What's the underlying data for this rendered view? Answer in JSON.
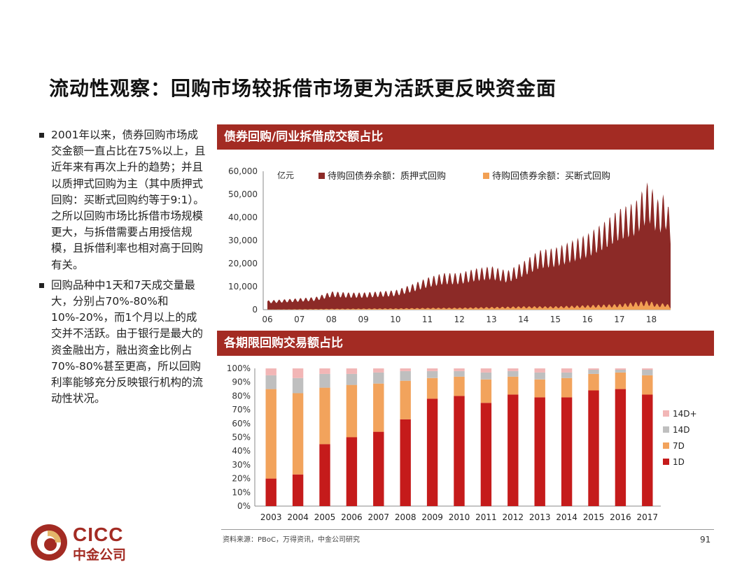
{
  "page": {
    "title": "流动性观察：回购市场较拆借市场更为活跃更反映资金面",
    "page_number": "91",
    "source": "资料来源：PBoC，万得资讯，中金公司研究"
  },
  "logo": {
    "en": "CICC",
    "cn": "中金公司"
  },
  "bullets": [
    "2001年以来，债券回购市场成交金额一直占比在75%以上，且近年来有再次上升的趋势；并且以质押式回购为主（其中质押式回购：买断式回购约等于9:1）。之所以回购市场比拆借市场规模更大，与拆借需要占用授信规模，且拆借利率也相对高于回购有关。",
    "回购品种中1天和7天成交量最大，分别占70%-80%和10%-20%，而1个月以上的成交并不活跃。由于银行是最大的资金融出方，融出资金比例占70%-80%甚至更高，所以回购利率能够充分反映银行机构的流动性状况。"
  ],
  "colors": {
    "band": "#a32b23",
    "pledged": "#8c2a27",
    "outright": "#f2a054",
    "d1": "#c51b1b",
    "d7": "#f2a35c",
    "d14": "#bfbfbf",
    "d14p": "#f2b6b6"
  },
  "chart_data": [
    {
      "type": "area",
      "title": "债券回购/同业拆借成交额占比",
      "unit_label": "亿元",
      "ylim": [
        0,
        60000
      ],
      "yticks": [
        "60,000",
        "50,000",
        "40,000",
        "30,000",
        "20,000",
        "10,000",
        "0"
      ],
      "xticks": [
        "06",
        "07",
        "08",
        "09",
        "10",
        "11",
        "12",
        "13",
        "14",
        "15",
        "16",
        "17",
        "18"
      ],
      "series": [
        {
          "name": "待购回债券余额：质押式回购",
          "x": [
            2006.0,
            2006.5,
            2007.0,
            2007.5,
            2008.0,
            2008.5,
            2009.0,
            2009.5,
            2010.0,
            2010.5,
            2011.0,
            2011.5,
            2012.0,
            2012.5,
            2013.0,
            2013.5,
            2014.0,
            2014.5,
            2015.0,
            2015.5,
            2016.0,
            2016.5,
            2017.0,
            2017.5,
            2017.9,
            2018.2,
            2018.45,
            2018.6
          ],
          "values": [
            4000,
            4500,
            5000,
            5500,
            8000,
            7500,
            7500,
            8000,
            8500,
            11000,
            14000,
            16000,
            16000,
            18000,
            19000,
            17000,
            21000,
            26000,
            27000,
            30000,
            33000,
            38000,
            44000,
            47000,
            56000,
            48000,
            51000,
            40000
          ]
        },
        {
          "name": "待购回债券余额：买断式回购",
          "x": [
            2006.0,
            2007.0,
            2008.0,
            2009.0,
            2010.0,
            2011.0,
            2012.0,
            2013.0,
            2014.0,
            2015.0,
            2016.0,
            2017.0,
            2017.9,
            2018.2,
            2018.45,
            2018.6
          ],
          "values": [
            100,
            200,
            400,
            500,
            600,
            800,
            900,
            1200,
            1500,
            1500,
            2000,
            2500,
            4000,
            2500,
            3000,
            1500
          ]
        }
      ]
    },
    {
      "type": "bar",
      "stacked": true,
      "title": "各期限回购交易额占比",
      "yticks": [
        "100%",
        "90%",
        "80%",
        "70%",
        "60%",
        "50%",
        "40%",
        "30%",
        "20%",
        "10%",
        "0%"
      ],
      "categories": [
        "2003",
        "2004",
        "2005",
        "2006",
        "2007",
        "2008",
        "2009",
        "2010",
        "2011",
        "2012",
        "2013",
        "2014",
        "2015",
        "2016",
        "2017"
      ],
      "legend": [
        "14D+",
        "14D",
        "7D",
        "1D"
      ],
      "series": [
        {
          "name": "1D",
          "values": [
            20,
            23,
            45,
            50,
            54,
            63,
            78,
            80,
            75,
            81,
            79,
            79,
            84,
            85,
            81
          ]
        },
        {
          "name": "7D",
          "values": [
            65,
            59,
            41,
            38,
            35,
            28,
            15,
            14,
            17,
            13,
            13,
            14,
            12,
            12,
            14
          ]
        },
        {
          "name": "14D",
          "values": [
            10,
            11,
            10,
            8,
            8,
            7,
            5,
            4,
            5,
            4,
            5,
            4,
            3,
            2,
            4
          ]
        },
        {
          "name": "14D+",
          "values": [
            5,
            7,
            4,
            4,
            3,
            2,
            2,
            2,
            3,
            2,
            3,
            3,
            1,
            1,
            1
          ]
        }
      ]
    }
  ]
}
